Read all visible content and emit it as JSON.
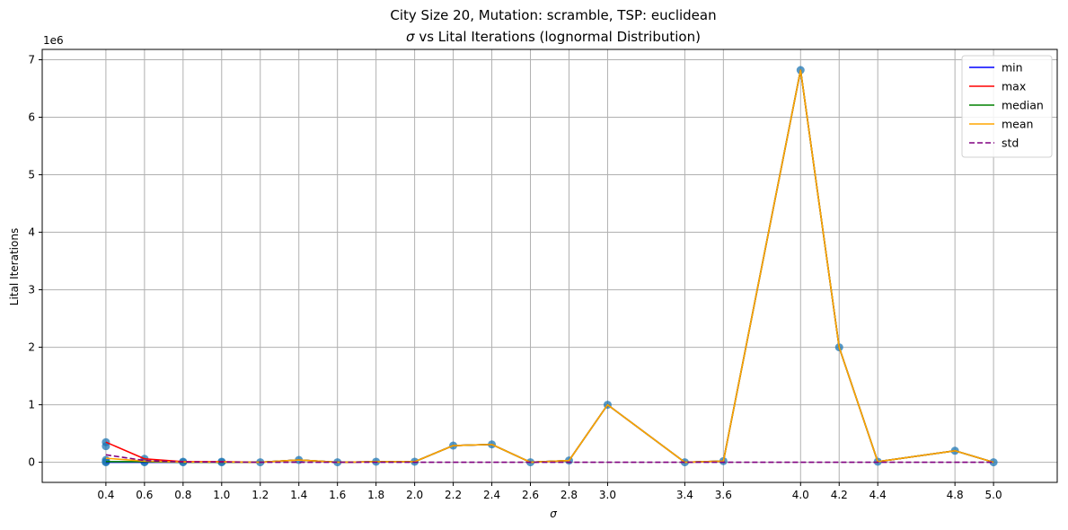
{
  "chart_data": {
    "type": "line",
    "title_line1": "City Size 20, Mutation: scramble, TSP: euclidean",
    "title_line2_prefix": "σ",
    "title_line2_rest": " vs Lital Iterations (lognormal Distribution)",
    "xlabel": "σ",
    "ylabel": "Lital Iterations",
    "y_offset_label": "1e6",
    "y_scale_factor": 1000000,
    "xlim": [
      0.07,
      5.33
    ],
    "ylim": [
      -350000,
      7180000
    ],
    "grid": true,
    "legend_position": "top-right",
    "x": [
      0.4,
      0.6,
      0.8,
      1.0,
      1.2,
      1.4,
      1.6,
      1.8,
      2.0,
      2.2,
      2.4,
      2.6,
      2.8,
      3.0,
      3.4,
      3.6,
      4.0,
      4.2,
      4.4,
      4.8,
      5.0
    ],
    "x_tick_labels": [
      "0.4",
      "0.6",
      "0.8",
      "1.0",
      "1.2",
      "1.4",
      "1.6",
      "1.8",
      "2.0",
      "2.2",
      "2.4",
      "2.6",
      "2.8",
      "3.0",
      "3.4",
      "3.6",
      "4.0",
      "4.2",
      "4.4",
      "4.8",
      "5.0"
    ],
    "y_ticks": [
      0,
      1000000,
      2000000,
      3000000,
      4000000,
      5000000,
      6000000,
      7000000
    ],
    "y_tick_labels": [
      "0",
      "1",
      "2",
      "3",
      "4",
      "5",
      "6",
      "7"
    ],
    "series": [
      {
        "name": "min",
        "color": "#0000ff",
        "dash": false,
        "values": [
          0,
          0,
          0,
          0,
          0,
          40000,
          0,
          10000,
          10000,
          290000,
          310000,
          0,
          30000,
          1000000,
          0,
          20000,
          6820000,
          2000000,
          10000,
          200000,
          0
        ]
      },
      {
        "name": "max",
        "color": "#ff0000",
        "dash": false,
        "values": [
          350000,
          60000,
          10000,
          10000,
          0,
          40000,
          0,
          10000,
          10000,
          290000,
          310000,
          0,
          30000,
          1000000,
          0,
          20000,
          6820000,
          2000000,
          10000,
          200000,
          0
        ]
      },
      {
        "name": "median",
        "color": "#008000",
        "dash": false,
        "values": [
          10000,
          10000,
          0,
          0,
          0,
          40000,
          0,
          10000,
          10000,
          290000,
          310000,
          0,
          30000,
          1000000,
          0,
          20000,
          6820000,
          2000000,
          10000,
          200000,
          0
        ]
      },
      {
        "name": "mean",
        "color": "#ffa500",
        "dash": false,
        "values": [
          70000,
          20000,
          5000,
          5000,
          0,
          40000,
          0,
          10000,
          10000,
          290000,
          310000,
          0,
          30000,
          1000000,
          0,
          20000,
          6820000,
          2000000,
          10000,
          200000,
          0
        ]
      },
      {
        "name": "std",
        "color": "#800080",
        "dash": true,
        "values": [
          130000,
          30000,
          5000,
          5000,
          0,
          0,
          0,
          0,
          0,
          0,
          0,
          0,
          0,
          0,
          0,
          0,
          0,
          0,
          0,
          0,
          0
        ]
      }
    ],
    "scatter_points": [
      {
        "x": 0.4,
        "y": 350000
      },
      {
        "x": 0.4,
        "y": 280000
      },
      {
        "x": 0.4,
        "y": 40000
      },
      {
        "x": 0.4,
        "y": 10000
      },
      {
        "x": 0.4,
        "y": 0
      },
      {
        "x": 0.6,
        "y": 60000
      },
      {
        "x": 0.6,
        "y": 10000
      },
      {
        "x": 0.6,
        "y": 0
      },
      {
        "x": 0.8,
        "y": 10000
      },
      {
        "x": 0.8,
        "y": 0
      },
      {
        "x": 1.0,
        "y": 10000
      },
      {
        "x": 1.0,
        "y": 0
      },
      {
        "x": 1.2,
        "y": 0
      },
      {
        "x": 1.4,
        "y": 40000
      },
      {
        "x": 1.6,
        "y": 0
      },
      {
        "x": 1.8,
        "y": 10000
      },
      {
        "x": 2.0,
        "y": 10000
      },
      {
        "x": 2.2,
        "y": 290000
      },
      {
        "x": 2.4,
        "y": 310000
      },
      {
        "x": 2.6,
        "y": 0
      },
      {
        "x": 2.8,
        "y": 30000
      },
      {
        "x": 3.0,
        "y": 1000000
      },
      {
        "x": 3.4,
        "y": 0
      },
      {
        "x": 3.6,
        "y": 20000
      },
      {
        "x": 4.0,
        "y": 6820000
      },
      {
        "x": 4.2,
        "y": 2000000
      },
      {
        "x": 4.4,
        "y": 10000
      },
      {
        "x": 4.8,
        "y": 200000
      },
      {
        "x": 5.0,
        "y": 0
      }
    ],
    "scatter_color": "#1f77b4"
  }
}
